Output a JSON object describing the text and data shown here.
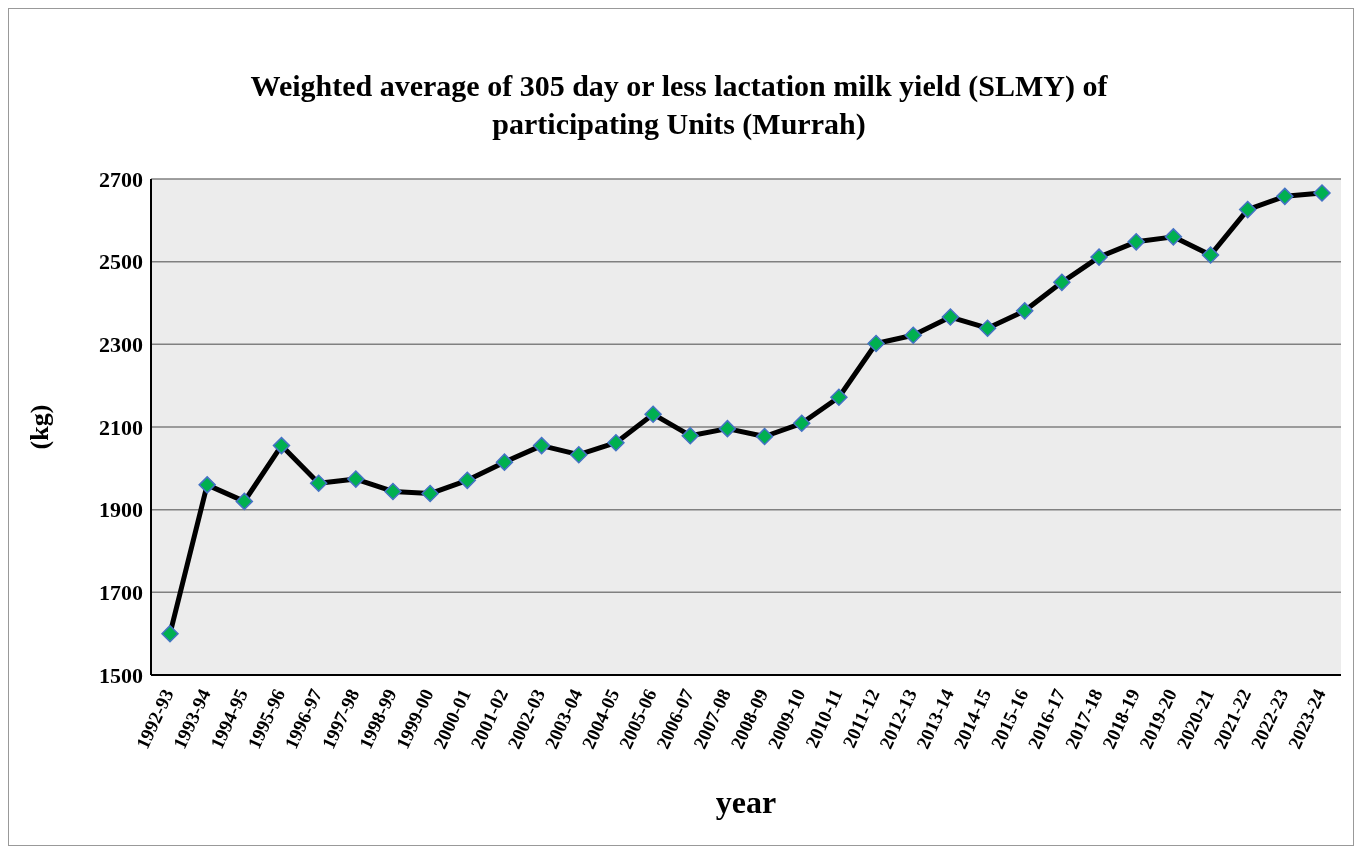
{
  "chart_data": {
    "type": "line",
    "title": "Weighted average of 305 day or less lactation milk yield (SLMY) of participating Units (Murrah)",
    "xlabel": "year",
    "ylabel": "(kg)",
    "categories": [
      "1992-93",
      "1993-94",
      "1994-95",
      "1995-96",
      "1996-97",
      "1997-98",
      "1998-99",
      "1999-00",
      "2000-01",
      "2001-02",
      "2002-03",
      "2003-04",
      "2004-05",
      "2005-06",
      "2006-07",
      "2007-08",
      "2008-09",
      "2009-10",
      "2010-11",
      "2011-12",
      "2012-13",
      "2013-14",
      "2014-15",
      "2015-16",
      "2016-17",
      "2017-18",
      "2018-19",
      "2019-20",
      "2020-21",
      "2021-22",
      "2022-23",
      "2023-24"
    ],
    "series": [
      {
        "color": "#000000",
        "values": [
          1600,
          1960,
          1920,
          2055,
          1964,
          1974,
          1944,
          1939,
          1971,
          2015,
          2055,
          2033,
          2062,
          2131,
          2079,
          2096,
          2077,
          2109,
          2172,
          2302,
          2322,
          2366,
          2339,
          2381,
          2450,
          2511,
          2548,
          2560,
          2516,
          2626,
          2658,
          2666
        ]
      }
    ],
    "ylim": [
      1500,
      2700
    ],
    "yticks": [
      1500,
      1700,
      1900,
      2100,
      2300,
      2500,
      2700
    ],
    "grid": "y",
    "marker": "diamond"
  }
}
